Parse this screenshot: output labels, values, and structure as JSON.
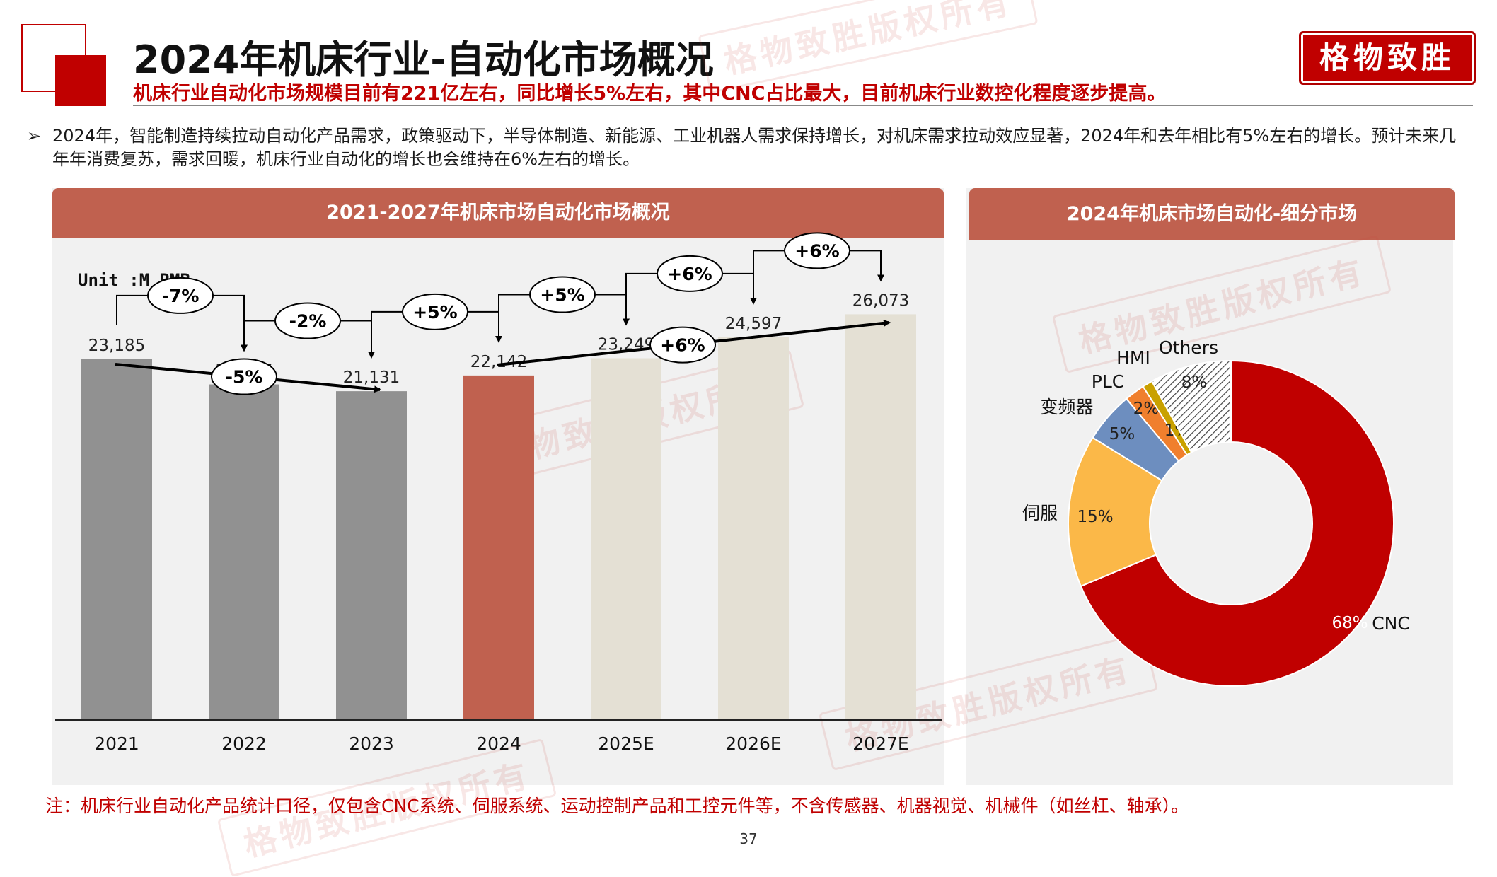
{
  "header": {
    "title": "2024年机床行业-自动化市场概况",
    "subtitle": "机床行业自动化市场规模目前有221亿左右，同比增长5%左右，其中CNC占比最大，目前机床行业数控化程度逐步提高。",
    "logo_text": "格物致胜",
    "accent_color": "#c00000"
  },
  "bullet": {
    "marker": "➢",
    "text": "2024年，智能制造持续拉动自动化产品需求，政策驱动下，半导体制造、新能源、工业机器人需求保持增长，对机床需求拉动效应显著，2024年和去年相比有5%左右的增长。预计未来几年年消费复苏，需求回暖，机床行业自动化的增长也会维持在6%左右的增长。"
  },
  "left_panel": {
    "header": "2021-2027年机床市场自动化市场概况",
    "unit": "Unit :M RMB"
  },
  "right_panel": {
    "header": "2024年机床市场自动化-细分市场"
  },
  "note": "注：机床行业自动化产品统计口径，仅包含CNC系统、伺服系统、运动控制产品和工控元件等，不含传感器、机器视觉、机械件（如丝杠、轴承）。",
  "page_number": "37",
  "watermark": "格物致胜版权所有",
  "chart_data": [
    {
      "type": "bar",
      "categories": [
        "2021",
        "2022",
        "2023",
        "2024",
        "2025E",
        "2026E",
        "2027E"
      ],
      "values": [
        23185,
        21567,
        21131,
        22142,
        23249,
        24597,
        26073
      ],
      "value_labels": [
        "23,185",
        "21,567",
        "21,131",
        "22,142",
        "23,249",
        "24,597",
        "26,073"
      ],
      "bar_colors": [
        "#919191",
        "#919191",
        "#919191",
        "#c0614f",
        "#e4e0d4",
        "#e4e0d4",
        "#e4e0d4"
      ],
      "ylim": [
        0,
        30000
      ],
      "growth_labels": [
        "-7%",
        "-2%",
        "+5%",
        "+5%",
        "+6%",
        "+6%"
      ],
      "trend_labels": [
        "-5%",
        "+6%"
      ]
    },
    {
      "type": "pie",
      "style": "donut",
      "labels": [
        "CNC",
        "伺服",
        "变频器",
        "PLC",
        "HMI",
        "Others"
      ],
      "values": [
        68,
        15,
        5,
        2,
        1,
        8
      ],
      "value_labels": [
        "68%",
        "15%",
        "5%",
        "2%",
        "1%",
        "8%"
      ],
      "colors": [
        "#c00000",
        "#fbb848",
        "#6d8ebf",
        "#f07f2d",
        "#c9a100",
        "hatch"
      ]
    }
  ]
}
